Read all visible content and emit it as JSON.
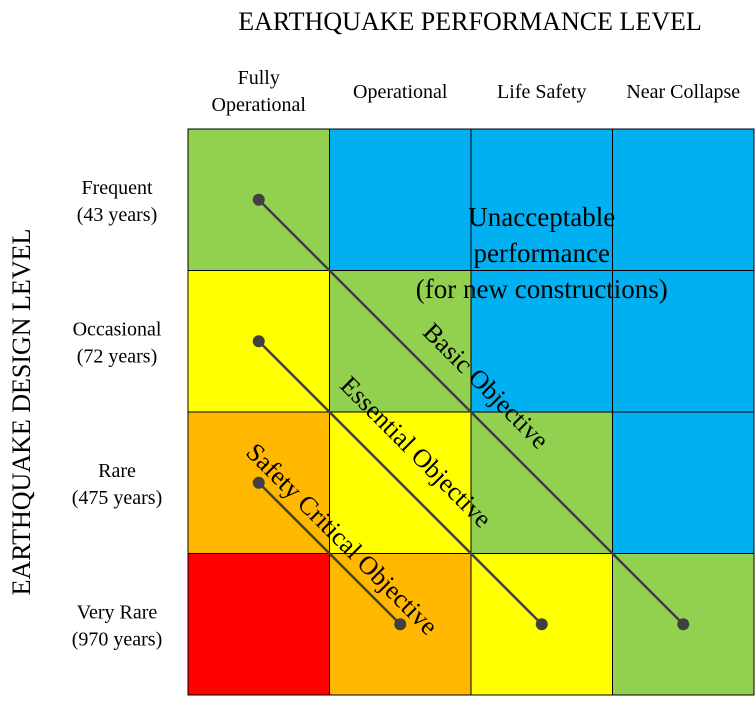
{
  "title_top": "EARTHQUAKE PERFORMANCE LEVEL",
  "title_left": "EARTHQUAKE DESIGN LEVEL",
  "columns": [
    {
      "lines": [
        "Fully",
        "Operational"
      ]
    },
    {
      "lines": [
        "Operational"
      ]
    },
    {
      "lines": [
        "Life Safety"
      ]
    },
    {
      "lines": [
        "Near Collapse"
      ]
    }
  ],
  "rows": [
    {
      "name": "Frequent",
      "period": "(43 years)"
    },
    {
      "name": "Occasional",
      "period": "(72 years)"
    },
    {
      "name": "Rare",
      "period": "(475 years)"
    },
    {
      "name": "Very Rare",
      "period": "(970 years)"
    }
  ],
  "colors": {
    "red": "#ff0000",
    "orange": "#ffb700",
    "yellow": "#ffff00",
    "green": "#92d050",
    "blue": "#00b0f0",
    "line": "#404040",
    "border": "#000000"
  },
  "grid": [
    [
      "green",
      "blue",
      "blue",
      "blue"
    ],
    [
      "yellow",
      "green",
      "blue",
      "blue"
    ],
    [
      "orange",
      "yellow",
      "green",
      "blue"
    ],
    [
      "red",
      "orange",
      "yellow",
      "green"
    ]
  ],
  "unacceptable_label": [
    "Unacceptable",
    "performance",
    "(for new constructions)"
  ],
  "objectives": [
    {
      "label": "Basic Objective",
      "from": [
        0,
        0
      ],
      "to": [
        3,
        3
      ]
    },
    {
      "label": "Essential Objective",
      "from": [
        1,
        0
      ],
      "to": [
        3,
        2
      ]
    },
    {
      "label": "Safety Critical Objective",
      "from": [
        2,
        0
      ],
      "to": [
        3,
        1
      ]
    }
  ]
}
